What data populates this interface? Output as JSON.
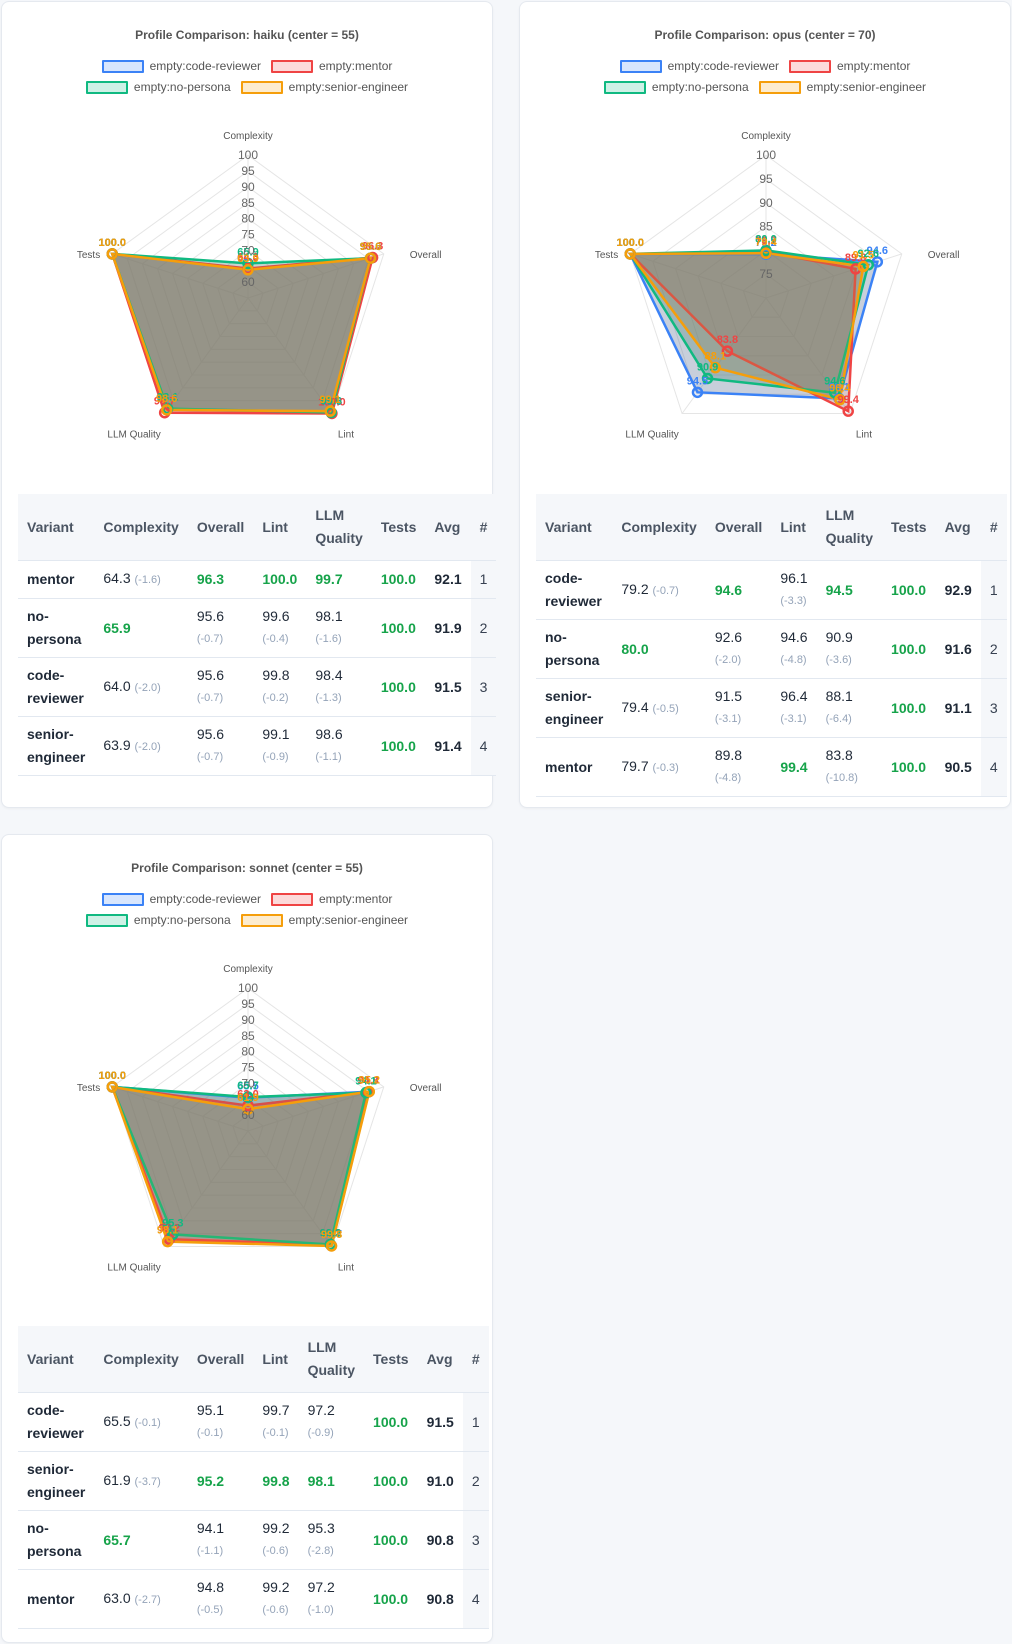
{
  "colors": {
    "code-reviewer": "#3b82f6",
    "mentor": "#ef4444",
    "no-persona": "#10b981",
    "senior-engineer": "#f59e0b",
    "best": "#16a34a",
    "delta": "#94a3b8"
  },
  "legend": [
    {
      "key": "code-reviewer",
      "label": "empty:code-reviewer",
      "border": "#3b82f6",
      "fill": "rgba(59,130,246,0.2)"
    },
    {
      "key": "mentor",
      "label": "empty:mentor",
      "border": "#ef4444",
      "fill": "rgba(239,68,68,0.2)"
    },
    {
      "key": "no-persona",
      "label": "empty:no-persona",
      "border": "#10b981",
      "fill": "rgba(16,185,129,0.2)"
    },
    {
      "key": "senior-engineer",
      "label": "empty:senior-engineer",
      "border": "#f59e0b",
      "fill": "rgba(245,158,11,0.2)"
    }
  ],
  "table_headers": {
    "variant": "Variant",
    "complexity": "Complexity",
    "overall": "Overall",
    "lint": "Lint",
    "llm_quality": "LLM Quality",
    "tests": "Tests",
    "avg": "Avg",
    "rank": "#"
  },
  "chart_data": [
    {
      "type": "radar",
      "title": "Profile Comparison: haiku  (center = 55)",
      "center": 55,
      "axes": [
        "Complexity",
        "Overall",
        "Lint",
        "LLM Quality",
        "Tests"
      ],
      "ticks": [
        60,
        65,
        70,
        75,
        80,
        85,
        90,
        95,
        100
      ],
      "tick_labels_shown": [
        "100",
        "95",
        "90",
        "85",
        "80",
        "75",
        "70",
        "60"
      ],
      "series": [
        {
          "name": "empty:code-reviewer",
          "key": "code-reviewer",
          "values": [
            64.0,
            95.6,
            99.8,
            98.4,
            100.0
          ]
        },
        {
          "name": "empty:mentor",
          "key": "mentor",
          "values": [
            64.3,
            96.3,
            100.0,
            99.7,
            100.0
          ]
        },
        {
          "name": "empty:no-persona",
          "key": "no-persona",
          "values": [
            65.9,
            95.6,
            99.6,
            98.1,
            100.0
          ]
        },
        {
          "name": "empty:senior-engineer",
          "key": "senior-engineer",
          "values": [
            63.9,
            95.6,
            99.1,
            98.6,
            100.0
          ]
        }
      ],
      "legend_position": "top",
      "table": {
        "rows": [
          {
            "variant": "mentor",
            "complexity": "64.3",
            "complexity_delta": "(-1.6)",
            "overall": "96.3",
            "overall_delta": "",
            "lint": "100.0",
            "lint_delta": "",
            "llm_quality": "99.7",
            "llm_quality_delta": "",
            "tests": "100.0",
            "avg": "92.1",
            "rank": "1",
            "best": [
              "overall",
              "lint",
              "llm_quality",
              "tests"
            ]
          },
          {
            "variant": "no-persona",
            "complexity": "65.9",
            "complexity_delta": "",
            "overall": "95.6",
            "overall_delta": "(-0.7)",
            "lint": "99.6",
            "lint_delta": "(-0.4)",
            "llm_quality": "98.1",
            "llm_quality_delta": "(-1.6)",
            "tests": "100.0",
            "avg": "91.9",
            "rank": "2",
            "best": [
              "complexity",
              "tests"
            ]
          },
          {
            "variant": "code-reviewer",
            "complexity": "64.0",
            "complexity_delta": "(-2.0)",
            "overall": "95.6",
            "overall_delta": "(-0.7)",
            "lint": "99.8",
            "lint_delta": "(-0.2)",
            "llm_quality": "98.4",
            "llm_quality_delta": "(-1.3)",
            "tests": "100.0",
            "avg": "91.5",
            "rank": "3",
            "best": [
              "tests"
            ]
          },
          {
            "variant": "senior-engineer",
            "complexity": "63.9",
            "complexity_delta": "(-2.0)",
            "overall": "95.6",
            "overall_delta": "(-0.7)",
            "lint": "99.1",
            "lint_delta": "(-0.9)",
            "llm_quality": "98.6",
            "llm_quality_delta": "(-1.1)",
            "tests": "100.0",
            "avg": "91.4",
            "rank": "4",
            "best": [
              "tests"
            ]
          }
        ]
      }
    },
    {
      "type": "radar",
      "title": "Profile Comparison: opus  (center = 70)",
      "center": 70,
      "axes": [
        "Complexity",
        "Overall",
        "Lint",
        "LLM Quality",
        "Tests"
      ],
      "ticks": [
        75,
        80,
        85,
        90,
        95,
        100
      ],
      "tick_labels_shown": [
        "100",
        "95",
        "90",
        "85",
        "75"
      ],
      "series": [
        {
          "name": "empty:code-reviewer",
          "key": "code-reviewer",
          "values": [
            79.2,
            94.6,
            96.1,
            94.5,
            100.0
          ]
        },
        {
          "name": "empty:mentor",
          "key": "mentor",
          "values": [
            79.7,
            89.8,
            99.4,
            83.8,
            100.0
          ]
        },
        {
          "name": "empty:no-persona",
          "key": "no-persona",
          "values": [
            80.0,
            92.6,
            94.6,
            90.9,
            100.0
          ]
        },
        {
          "name": "empty:senior-engineer",
          "key": "senior-engineer",
          "values": [
            79.4,
            91.5,
            96.4,
            88.1,
            100.0
          ]
        }
      ],
      "legend_position": "top",
      "table": {
        "rows": [
          {
            "variant": "code-reviewer",
            "complexity": "79.2",
            "complexity_delta": "(-0.7)",
            "overall": "94.6",
            "overall_delta": "",
            "lint": "96.1",
            "lint_delta": "(-3.3)",
            "llm_quality": "94.5",
            "llm_quality_delta": "",
            "tests": "100.0",
            "avg": "92.9",
            "rank": "1",
            "best": [
              "overall",
              "llm_quality",
              "tests"
            ]
          },
          {
            "variant": "no-persona",
            "complexity": "80.0",
            "complexity_delta": "",
            "overall": "92.6",
            "overall_delta": "(-2.0)",
            "lint": "94.6",
            "lint_delta": "(-4.8)",
            "llm_quality": "90.9",
            "llm_quality_delta": "(-3.6)",
            "tests": "100.0",
            "avg": "91.6",
            "rank": "2",
            "best": [
              "complexity",
              "tests"
            ]
          },
          {
            "variant": "senior-engineer",
            "complexity": "79.4",
            "complexity_delta": "(-0.5)",
            "overall": "91.5",
            "overall_delta": "(-3.1)",
            "lint": "96.4",
            "lint_delta": "(-3.1)",
            "llm_quality": "88.1",
            "llm_quality_delta": "(-6.4)",
            "tests": "100.0",
            "avg": "91.1",
            "rank": "3",
            "best": [
              "tests"
            ]
          },
          {
            "variant": "mentor",
            "complexity": "79.7",
            "complexity_delta": "(-0.3)",
            "overall": "89.8",
            "overall_delta": "(-4.8)",
            "lint": "99.4",
            "lint_delta": "",
            "llm_quality": "83.8",
            "llm_quality_delta": "(-10.8)",
            "tests": "100.0",
            "avg": "90.5",
            "rank": "4",
            "best": [
              "lint",
              "tests"
            ]
          }
        ]
      }
    },
    {
      "type": "radar",
      "title": "Profile Comparison: sonnet  (center = 55)",
      "center": 55,
      "axes": [
        "Complexity",
        "Overall",
        "Lint",
        "LLM Quality",
        "Tests"
      ],
      "ticks": [
        60,
        65,
        70,
        75,
        80,
        85,
        90,
        95,
        100
      ],
      "tick_labels_shown": [
        "100",
        "95",
        "90",
        "85",
        "80",
        "75",
        "70",
        "60"
      ],
      "series": [
        {
          "name": "empty:code-reviewer",
          "key": "code-reviewer",
          "values": [
            65.5,
            95.1,
            99.7,
            97.2,
            100.0
          ]
        },
        {
          "name": "empty:mentor",
          "key": "mentor",
          "values": [
            63.0,
            94.8,
            99.2,
            97.2,
            100.0
          ]
        },
        {
          "name": "empty:no-persona",
          "key": "no-persona",
          "values": [
            65.7,
            94.1,
            99.2,
            95.3,
            100.0
          ]
        },
        {
          "name": "empty:senior-engineer",
          "key": "senior-engineer",
          "values": [
            61.9,
            95.2,
            99.8,
            98.1,
            100.0
          ]
        }
      ],
      "legend_position": "top",
      "table": {
        "rows": [
          {
            "variant": "code-reviewer",
            "complexity": "65.5",
            "complexity_delta": "(-0.1)",
            "overall": "95.1",
            "overall_delta": "(-0.1)",
            "lint": "99.7",
            "lint_delta": "(-0.1)",
            "llm_quality": "97.2",
            "llm_quality_delta": "(-0.9)",
            "tests": "100.0",
            "avg": "91.5",
            "rank": "1",
            "best": [
              "tests"
            ]
          },
          {
            "variant": "senior-engineer",
            "complexity": "61.9",
            "complexity_delta": "(-3.7)",
            "overall": "95.2",
            "overall_delta": "",
            "lint": "99.8",
            "lint_delta": "",
            "llm_quality": "98.1",
            "llm_quality_delta": "",
            "tests": "100.0",
            "avg": "91.0",
            "rank": "2",
            "best": [
              "overall",
              "lint",
              "llm_quality",
              "tests"
            ]
          },
          {
            "variant": "no-persona",
            "complexity": "65.7",
            "complexity_delta": "",
            "overall": "94.1",
            "overall_delta": "(-1.1)",
            "lint": "99.2",
            "lint_delta": "(-0.6)",
            "llm_quality": "95.3",
            "llm_quality_delta": "(-2.8)",
            "tests": "100.0",
            "avg": "90.8",
            "rank": "3",
            "best": [
              "complexity",
              "tests"
            ]
          },
          {
            "variant": "mentor",
            "complexity": "63.0",
            "complexity_delta": "(-2.7)",
            "overall": "94.8",
            "overall_delta": "(-0.5)",
            "lint": "99.2",
            "lint_delta": "(-0.6)",
            "llm_quality": "97.2",
            "llm_quality_delta": "(-1.0)",
            "tests": "100.0",
            "avg": "90.8",
            "rank": "4",
            "best": [
              "tests"
            ]
          }
        ]
      }
    }
  ]
}
